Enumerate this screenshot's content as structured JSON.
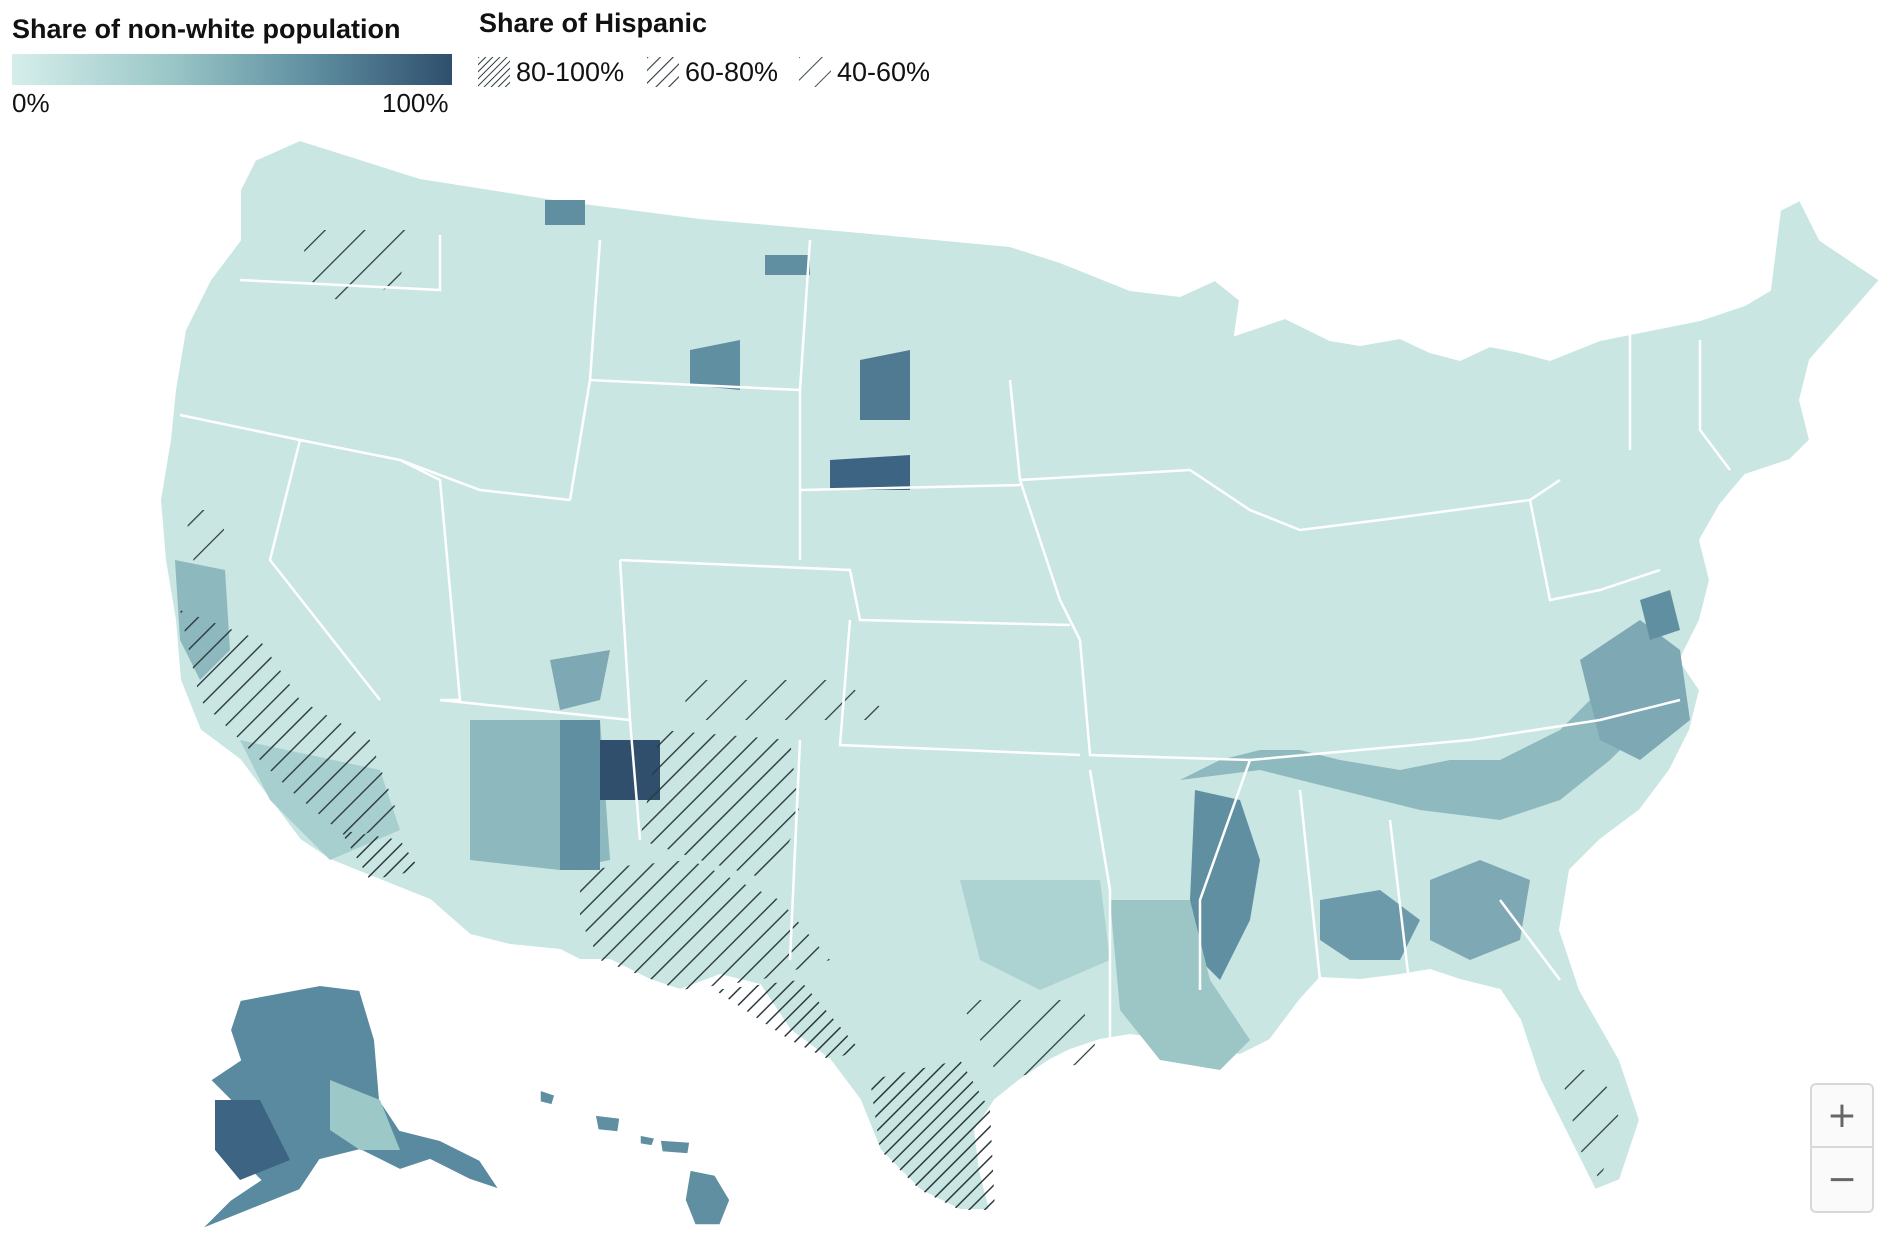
{
  "legend": {
    "nonwhite_title": "Share of non-white population",
    "scale_min": "0%",
    "scale_max": "100%",
    "gradient": [
      "#d6eeeb",
      "#9cc8c8",
      "#5f8fa1",
      "#2f4f6d"
    ],
    "hispanic_title": "Share of Hispanic",
    "hispanic_bins": [
      {
        "label": "80-100%",
        "density": "dense"
      },
      {
        "label": "60-80%",
        "density": "medium"
      },
      {
        "label": "40-60%",
        "density": "sparse"
      }
    ]
  },
  "map": {
    "base_color": "#c9e6e3",
    "border_color": "#ffffff",
    "hatch_color": "#2c3a40",
    "regions_shown": [
      "Contiguous United States",
      "Alaska",
      "Hawaii"
    ]
  },
  "controls": {
    "zoom_in_label": "+",
    "zoom_out_label": "−"
  }
}
